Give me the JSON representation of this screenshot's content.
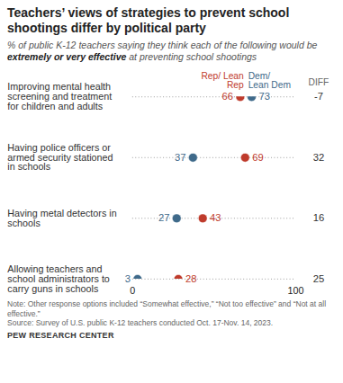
{
  "chart_data": {
    "type": "dot",
    "title": "Teachers’ views of strategies to prevent school shootings differ by political party",
    "subtitle": "% of public K-12 teachers saying they think each of the following would be extremely or very effective at preventing school shootings",
    "subtitle_emphasis": "extremely or very effective",
    "categories": [
      "Improving mental health screening and treatment for children and adults",
      "Having police officers or armed security stationed in schools",
      "Having metal detectors in schools",
      "Allowing teachers and school administrators to carry guns in schools"
    ],
    "series": [
      {
        "name": "Rep/ Lean Rep",
        "color": "#bf3b2c",
        "values": [
          66,
          69,
          43,
          28
        ]
      },
      {
        "name": "Dem/ Lean Dem",
        "color": "#3f6a8a",
        "values": [
          73,
          37,
          27,
          3
        ]
      }
    ],
    "diff": {
      "label": "DIFF",
      "values": [
        -7,
        32,
        16,
        25
      ]
    },
    "xlim": [
      0,
      100
    ],
    "xticks": [
      0,
      100
    ],
    "data_labels": true,
    "note": "Note: Other response options included “Somewhat effective,” “Not too effective” and “Not at all effective.”",
    "source": "Source: Survey of U.S. public K-12 teachers conducted Oct. 17-Nov. 14, 2023.",
    "credit": "PEW RESEARCH CENTER"
  }
}
